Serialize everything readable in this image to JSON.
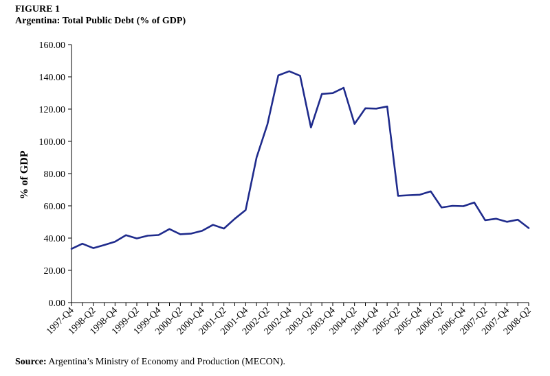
{
  "figure": {
    "label": "FIGURE 1",
    "title": "Argentina: Total Public Debt (% of GDP)",
    "source_prefix": "Source:",
    "source_text": " Argentina’s Ministry of Economy and Production (MECON)."
  },
  "chart_data": {
    "type": "line",
    "title": "Argentina: Total Public Debt (% of GDP)",
    "xlabel": "",
    "ylabel": "% of GDP",
    "ylim": [
      0,
      160
    ],
    "yticks": [
      0,
      20,
      40,
      60,
      80,
      100,
      120,
      140,
      160
    ],
    "ytick_labels": [
      "0.00",
      "20.00",
      "40.00",
      "60.00",
      "80.00",
      "100.00",
      "120.00",
      "140.00",
      "160.00"
    ],
    "grid": false,
    "legend": "none",
    "line_color": "#1f2b8c",
    "x": [
      "1997-Q4",
      "1998-Q1",
      "1998-Q2",
      "1998-Q3",
      "1998-Q4",
      "1999-Q1",
      "1999-Q2",
      "1999-Q3",
      "1999-Q4",
      "2000-Q1",
      "2000-Q2",
      "2000-Q3",
      "2000-Q4",
      "2001-Q1",
      "2001-Q2",
      "2001-Q3",
      "2001-Q4",
      "2002-Q1",
      "2002-Q2",
      "2002-Q3",
      "2002-Q4",
      "2003-Q1",
      "2003-Q2",
      "2003-Q3",
      "2003-Q4",
      "2004-Q1",
      "2004-Q2",
      "2004-Q3",
      "2004-Q4",
      "2005-Q1",
      "2005-Q2",
      "2005-Q3",
      "2005-Q4",
      "2006-Q1",
      "2006-Q2",
      "2006-Q3",
      "2006-Q4",
      "2007-Q1",
      "2007-Q2",
      "2007-Q3",
      "2007-Q4",
      "2008-Q1",
      "2008-Q2"
    ],
    "x_tick_labels": [
      "1997-Q4",
      "1998-Q2",
      "1998-Q4",
      "1999-Q2",
      "1999-Q4",
      "2000-Q2",
      "2000-Q4",
      "2001-Q2",
      "2001-Q4",
      "2002-Q2",
      "2002-Q4",
      "2003-Q2",
      "2003-Q4",
      "2004-Q2",
      "2004-Q4",
      "2005-Q2",
      "2005-Q4",
      "2006-Q2",
      "2006-Q4",
      "2007-Q2",
      "2007-Q4",
      "2008-Q2"
    ],
    "series": [
      {
        "values": [
          33.3,
          36.5,
          33.8,
          35.7,
          37.8,
          41.8,
          39.8,
          41.5,
          41.9,
          45.6,
          42.4,
          42.8,
          44.5,
          48.2,
          45.9,
          52.0,
          57.4,
          90.0,
          110.6,
          140.9,
          143.5,
          140.7,
          108.6,
          129.4,
          129.9,
          133.2,
          110.8,
          120.5,
          120.3,
          121.6,
          66.2,
          66.6,
          66.9,
          69.0,
          59.0,
          60.0,
          59.8,
          62.1,
          51.1,
          52.0,
          50.1,
          51.4,
          46.2
        ]
      }
    ]
  }
}
